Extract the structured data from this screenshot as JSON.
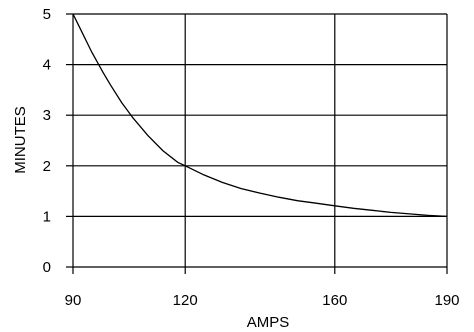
{
  "chart_data": {
    "type": "line",
    "title": "",
    "xlabel": "AMPS",
    "ylabel": "MINUTES",
    "xlim": [
      90,
      190
    ],
    "ylim": [
      0,
      5
    ],
    "x_ticks": [
      90,
      120,
      160,
      190
    ],
    "y_ticks": [
      0,
      1,
      2,
      3,
      4,
      5
    ],
    "grid": true,
    "series": [
      {
        "x": [
          90,
          92,
          95,
          98,
          100,
          103,
          106,
          110,
          114,
          118,
          120,
          125,
          130,
          135,
          140,
          145,
          150,
          155,
          160,
          165,
          170,
          175,
          180,
          185,
          190
        ],
        "y": [
          5.0,
          4.7,
          4.25,
          3.85,
          3.6,
          3.25,
          2.95,
          2.6,
          2.3,
          2.07,
          2.0,
          1.82,
          1.67,
          1.55,
          1.46,
          1.38,
          1.31,
          1.26,
          1.21,
          1.16,
          1.12,
          1.08,
          1.05,
          1.02,
          1.0
        ]
      }
    ]
  }
}
